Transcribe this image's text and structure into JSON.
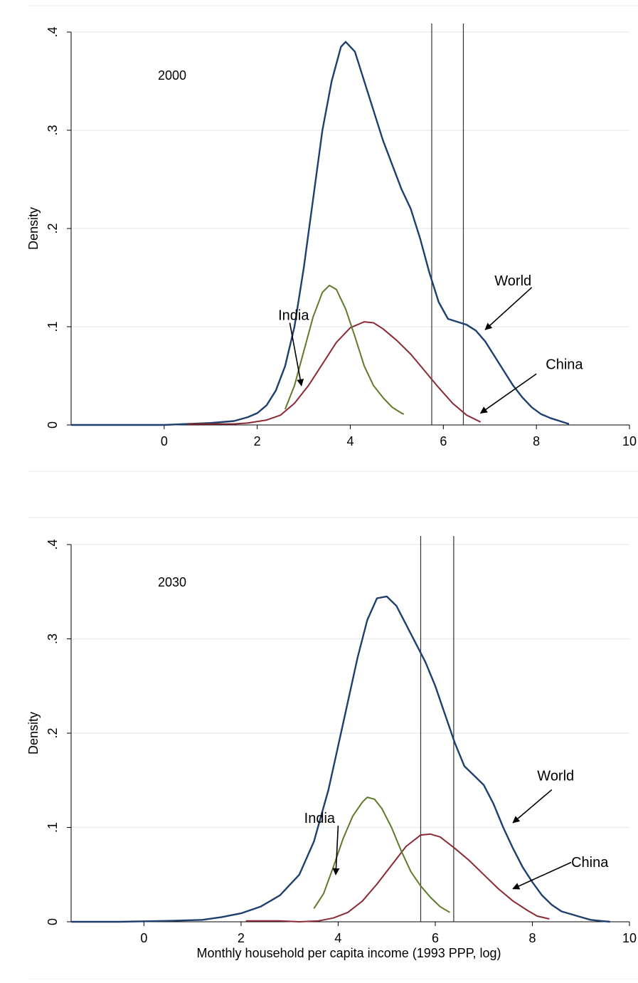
{
  "chart_data": [
    {
      "type": "line",
      "annotation_year": "2000",
      "xlabel": "",
      "ylabel": "Density",
      "xlim": [
        -2,
        10
      ],
      "ylim": [
        0,
        0.4
      ],
      "xticks": [
        {
          "value": 0,
          "label": "0"
        },
        {
          "value": 2,
          "label": "2"
        },
        {
          "value": 4,
          "label": "4"
        },
        {
          "value": 6,
          "label": "6"
        },
        {
          "value": 8,
          "label": "8"
        },
        {
          "value": 10,
          "label": "10"
        }
      ],
      "yticks": [
        {
          "value": 0,
          "label": "0"
        },
        {
          "value": 0.1,
          "label": ".1"
        },
        {
          "value": 0.2,
          "label": ".2"
        },
        {
          "value": 0.3,
          "label": ".3"
        },
        {
          "value": 0.4,
          "label": ".4"
        }
      ],
      "grid": true,
      "vlines": [
        5.75,
        6.43
      ],
      "colors": {
        "World": "#1f3f6e",
        "China": "#8b2a35",
        "India": "#5f7a2a"
      },
      "series": [
        {
          "name": "World",
          "points": [
            [
              -2,
              0
            ],
            [
              -1,
              0
            ],
            [
              0,
              0
            ],
            [
              0.5,
              0.001
            ],
            [
              1,
              0.002
            ],
            [
              1.5,
              0.004
            ],
            [
              1.8,
              0.008
            ],
            [
              2.0,
              0.012
            ],
            [
              2.2,
              0.02
            ],
            [
              2.4,
              0.035
            ],
            [
              2.6,
              0.06
            ],
            [
              2.8,
              0.1
            ],
            [
              3.0,
              0.16
            ],
            [
              3.2,
              0.23
            ],
            [
              3.4,
              0.3
            ],
            [
              3.6,
              0.35
            ],
            [
              3.8,
              0.385
            ],
            [
              3.9,
              0.39
            ],
            [
              4.0,
              0.385
            ],
            [
              4.1,
              0.38
            ],
            [
              4.3,
              0.35
            ],
            [
              4.5,
              0.32
            ],
            [
              4.7,
              0.29
            ],
            [
              4.9,
              0.265
            ],
            [
              5.1,
              0.24
            ],
            [
              5.3,
              0.22
            ],
            [
              5.5,
              0.19
            ],
            [
              5.7,
              0.155
            ],
            [
              5.9,
              0.125
            ],
            [
              6.1,
              0.108
            ],
            [
              6.3,
              0.105
            ],
            [
              6.5,
              0.102
            ],
            [
              6.7,
              0.096
            ],
            [
              6.9,
              0.085
            ],
            [
              7.1,
              0.07
            ],
            [
              7.3,
              0.055
            ],
            [
              7.5,
              0.04
            ],
            [
              7.7,
              0.028
            ],
            [
              7.9,
              0.018
            ],
            [
              8.1,
              0.011
            ],
            [
              8.3,
              0.007
            ],
            [
              8.5,
              0.004
            ],
            [
              8.7,
              0.001
            ]
          ]
        },
        {
          "name": "China",
          "points": [
            [
              0.5,
              0.001
            ],
            [
              1.0,
              0.001
            ],
            [
              1.5,
              0.001
            ],
            [
              1.8,
              0.002
            ],
            [
              2.2,
              0.005
            ],
            [
              2.5,
              0.01
            ],
            [
              2.8,
              0.022
            ],
            [
              3.1,
              0.04
            ],
            [
              3.4,
              0.062
            ],
            [
              3.7,
              0.084
            ],
            [
              4.0,
              0.099
            ],
            [
              4.3,
              0.105
            ],
            [
              4.5,
              0.104
            ],
            [
              4.7,
              0.098
            ],
            [
              5.0,
              0.086
            ],
            [
              5.3,
              0.072
            ],
            [
              5.6,
              0.055
            ],
            [
              5.9,
              0.038
            ],
            [
              6.2,
              0.022
            ],
            [
              6.5,
              0.01
            ],
            [
              6.8,
              0.003
            ]
          ]
        },
        {
          "name": "India",
          "points": [
            [
              2.6,
              0.016
            ],
            [
              2.8,
              0.04
            ],
            [
              3.0,
              0.075
            ],
            [
              3.2,
              0.11
            ],
            [
              3.4,
              0.135
            ],
            [
              3.55,
              0.142
            ],
            [
              3.7,
              0.138
            ],
            [
              3.9,
              0.118
            ],
            [
              4.1,
              0.09
            ],
            [
              4.3,
              0.06
            ],
            [
              4.5,
              0.04
            ],
            [
              4.7,
              0.028
            ],
            [
              4.9,
              0.018
            ],
            [
              5.1,
              0.012
            ],
            [
              5.15,
              0.011
            ]
          ]
        }
      ],
      "annotations": [
        {
          "text": "India",
          "label_at": [
            2.45,
            0.107
          ],
          "arrow_from": [
            2.7,
            0.104
          ],
          "arrow_to": [
            2.95,
            0.04
          ]
        },
        {
          "text": "World",
          "label_at": [
            7.1,
            0.142
          ],
          "arrow_from": [
            7.9,
            0.14
          ],
          "arrow_to": [
            6.9,
            0.097
          ]
        },
        {
          "text": "China",
          "label_at": [
            8.2,
            0.057
          ],
          "arrow_from": [
            8.0,
            0.052
          ],
          "arrow_to": [
            6.8,
            0.012
          ]
        }
      ]
    },
    {
      "type": "line",
      "annotation_year": "2030",
      "xlabel": "Monthly household per capita income (1993 PPP, log)",
      "ylabel": "Density",
      "xlim": [
        -1.5,
        10
      ],
      "ylim": [
        0,
        0.4
      ],
      "xticks": [
        {
          "value": 0,
          "label": "0"
        },
        {
          "value": 2,
          "label": "2"
        },
        {
          "value": 4,
          "label": "4"
        },
        {
          "value": 6,
          "label": "6"
        },
        {
          "value": 8,
          "label": "8"
        },
        {
          "value": 10,
          "label": "10"
        }
      ],
      "yticks": [
        {
          "value": 0,
          "label": "0"
        },
        {
          "value": 0.1,
          "label": ".1"
        },
        {
          "value": 0.2,
          "label": ".2"
        },
        {
          "value": 0.3,
          "label": ".3"
        },
        {
          "value": 0.4,
          "label": ".4"
        }
      ],
      "grid": true,
      "vlines": [
        5.7,
        6.38
      ],
      "colors": {
        "World": "#1f3f6e",
        "China": "#8b2a35",
        "India": "#5f7a2a"
      },
      "series": [
        {
          "name": "World",
          "points": [
            [
              -1.5,
              0
            ],
            [
              -0.5,
              0
            ],
            [
              0.5,
              0.001
            ],
            [
              1.2,
              0.002
            ],
            [
              1.6,
              0.005
            ],
            [
              2.0,
              0.009
            ],
            [
              2.4,
              0.016
            ],
            [
              2.8,
              0.028
            ],
            [
              3.2,
              0.05
            ],
            [
              3.5,
              0.085
            ],
            [
              3.8,
              0.14
            ],
            [
              4.1,
              0.21
            ],
            [
              4.4,
              0.28
            ],
            [
              4.6,
              0.32
            ],
            [
              4.8,
              0.343
            ],
            [
              5.0,
              0.345
            ],
            [
              5.2,
              0.335
            ],
            [
              5.4,
              0.315
            ],
            [
              5.6,
              0.295
            ],
            [
              5.8,
              0.275
            ],
            [
              6.0,
              0.25
            ],
            [
              6.2,
              0.22
            ],
            [
              6.4,
              0.19
            ],
            [
              6.6,
              0.165
            ],
            [
              6.8,
              0.155
            ],
            [
              7.0,
              0.145
            ],
            [
              7.2,
              0.125
            ],
            [
              7.4,
              0.1
            ],
            [
              7.6,
              0.078
            ],
            [
              7.8,
              0.058
            ],
            [
              8.0,
              0.042
            ],
            [
              8.2,
              0.028
            ],
            [
              8.4,
              0.018
            ],
            [
              8.6,
              0.011
            ],
            [
              8.8,
              0.008
            ],
            [
              9.0,
              0.005
            ],
            [
              9.2,
              0.002
            ],
            [
              9.4,
              0.001
            ],
            [
              9.6,
              0
            ]
          ]
        },
        {
          "name": "China",
          "points": [
            [
              2.1,
              0.001
            ],
            [
              2.8,
              0.001
            ],
            [
              3.2,
              0
            ],
            [
              3.6,
              0.001
            ],
            [
              3.9,
              0.004
            ],
            [
              4.2,
              0.01
            ],
            [
              4.5,
              0.022
            ],
            [
              4.8,
              0.04
            ],
            [
              5.1,
              0.06
            ],
            [
              5.4,
              0.08
            ],
            [
              5.7,
              0.092
            ],
            [
              5.9,
              0.093
            ],
            [
              6.1,
              0.09
            ],
            [
              6.4,
              0.078
            ],
            [
              6.7,
              0.065
            ],
            [
              7.0,
              0.05
            ],
            [
              7.3,
              0.035
            ],
            [
              7.6,
              0.022
            ],
            [
              7.9,
              0.012
            ],
            [
              8.1,
              0.006
            ],
            [
              8.35,
              0.003
            ]
          ]
        },
        {
          "name": "India",
          "points": [
            [
              3.5,
              0.014
            ],
            [
              3.7,
              0.03
            ],
            [
              3.9,
              0.058
            ],
            [
              4.1,
              0.088
            ],
            [
              4.3,
              0.112
            ],
            [
              4.5,
              0.127
            ],
            [
              4.6,
              0.132
            ],
            [
              4.75,
              0.13
            ],
            [
              4.9,
              0.12
            ],
            [
              5.1,
              0.1
            ],
            [
              5.3,
              0.075
            ],
            [
              5.5,
              0.053
            ],
            [
              5.7,
              0.038
            ],
            [
              5.9,
              0.026
            ],
            [
              6.1,
              0.016
            ],
            [
              6.3,
              0.01
            ]
          ]
        }
      ],
      "annotations": [
        {
          "text": "India",
          "label_at": [
            3.3,
            0.105
          ],
          "arrow_from": [
            4.0,
            0.102
          ],
          "arrow_to": [
            3.95,
            0.05
          ]
        },
        {
          "text": "World",
          "label_at": [
            8.1,
            0.15
          ],
          "arrow_from": [
            8.4,
            0.14
          ],
          "arrow_to": [
            7.6,
            0.105
          ]
        },
        {
          "text": "China",
          "label_at": [
            8.8,
            0.058
          ],
          "arrow_from": [
            8.8,
            0.063
          ],
          "arrow_to": [
            7.6,
            0.035
          ]
        }
      ]
    }
  ]
}
